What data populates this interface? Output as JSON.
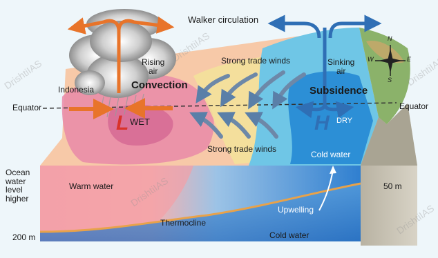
{
  "labels": {
    "walker_circulation": "Walker circulation",
    "rising_air": "Rising\nair",
    "convection": "Convection",
    "indonesia": "Indonesia",
    "equator_left": "Equator",
    "equator_right": "Equator",
    "wet": "WET",
    "low": "L",
    "strong_trade_winds_top": "Strong trade winds",
    "strong_trade_winds_bottom": "Strong trade winds",
    "sinking_air": "Sinking\nair",
    "subsidence": "Subsidence",
    "high": "H",
    "dry": "DRY",
    "cold_water_surface": "Cold water",
    "ocean_water_level_higher": "Ocean\nwater\nlevel\nhigher",
    "warm_water": "Warm water",
    "thermocline": "Thermocline",
    "upwelling": "Upwelling",
    "cold_water_deep": "Cold water",
    "depth_50": "50 m",
    "depth_200": "200 m",
    "compass_n": "N",
    "compass_s": "S",
    "compass_e": "E",
    "compass_w": "W"
  },
  "watermark": "DrishtiIAS",
  "colors": {
    "warm_arrow": "#e8742a",
    "cool_arrow": "#2f6fb5",
    "low_pressure": "#d9332a",
    "high_pressure": "#2f6fb5",
    "warm_water": "#f2a3a8",
    "cold_water": "#3a8fd6",
    "thermocline": "#e8a24a"
  }
}
